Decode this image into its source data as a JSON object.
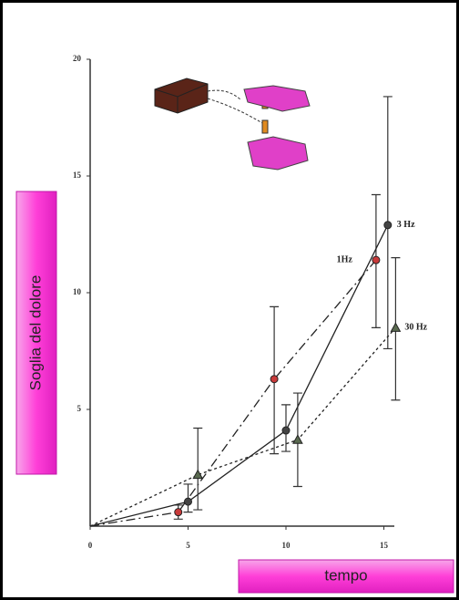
{
  "chart_data": {
    "type": "line",
    "y_label": "Soglia del dolore",
    "x_label": "tempo",
    "xlim": [
      0,
      16
    ],
    "ylim": [
      0,
      20
    ],
    "xticks": [
      0,
      5,
      10,
      15
    ],
    "yticks": [
      5,
      10,
      15,
      20
    ],
    "series": [
      {
        "name": "1Hz",
        "color": "#222222",
        "marker_color": "#c83a3a",
        "marker": "circle",
        "dash": "dashdot",
        "x": [
          0,
          4.5,
          9.4,
          14.6
        ],
        "values": [
          0,
          0.6,
          6.3,
          11.4
        ],
        "error_low": [
          0,
          0.3,
          3.1,
          8.5
        ],
        "error_high": [
          0,
          0.9,
          9.4,
          14.2
        ]
      },
      {
        "name": "3 Hz",
        "color": "#222222",
        "marker_color": "#444444",
        "marker": "circle",
        "dash": "solid",
        "x": [
          0,
          5,
          10,
          15.2
        ],
        "values": [
          0,
          1.05,
          4.1,
          12.9
        ],
        "error_low": [
          0,
          0.6,
          3.2,
          7.6
        ],
        "error_high": [
          0,
          1.8,
          5.2,
          18.4
        ]
      },
      {
        "name": "30 Hz",
        "color": "#222222",
        "marker_color": "#5a6a50",
        "marker": "triangle",
        "dash": "dotted",
        "x": [
          0,
          5.5,
          10.6,
          15.6
        ],
        "values": [
          0,
          2.2,
          3.7,
          8.5
        ],
        "error_low": [
          0,
          0.7,
          1.7,
          5.4
        ],
        "error_high": [
          0,
          4.2,
          5.7,
          11.5
        ]
      }
    ]
  }
}
